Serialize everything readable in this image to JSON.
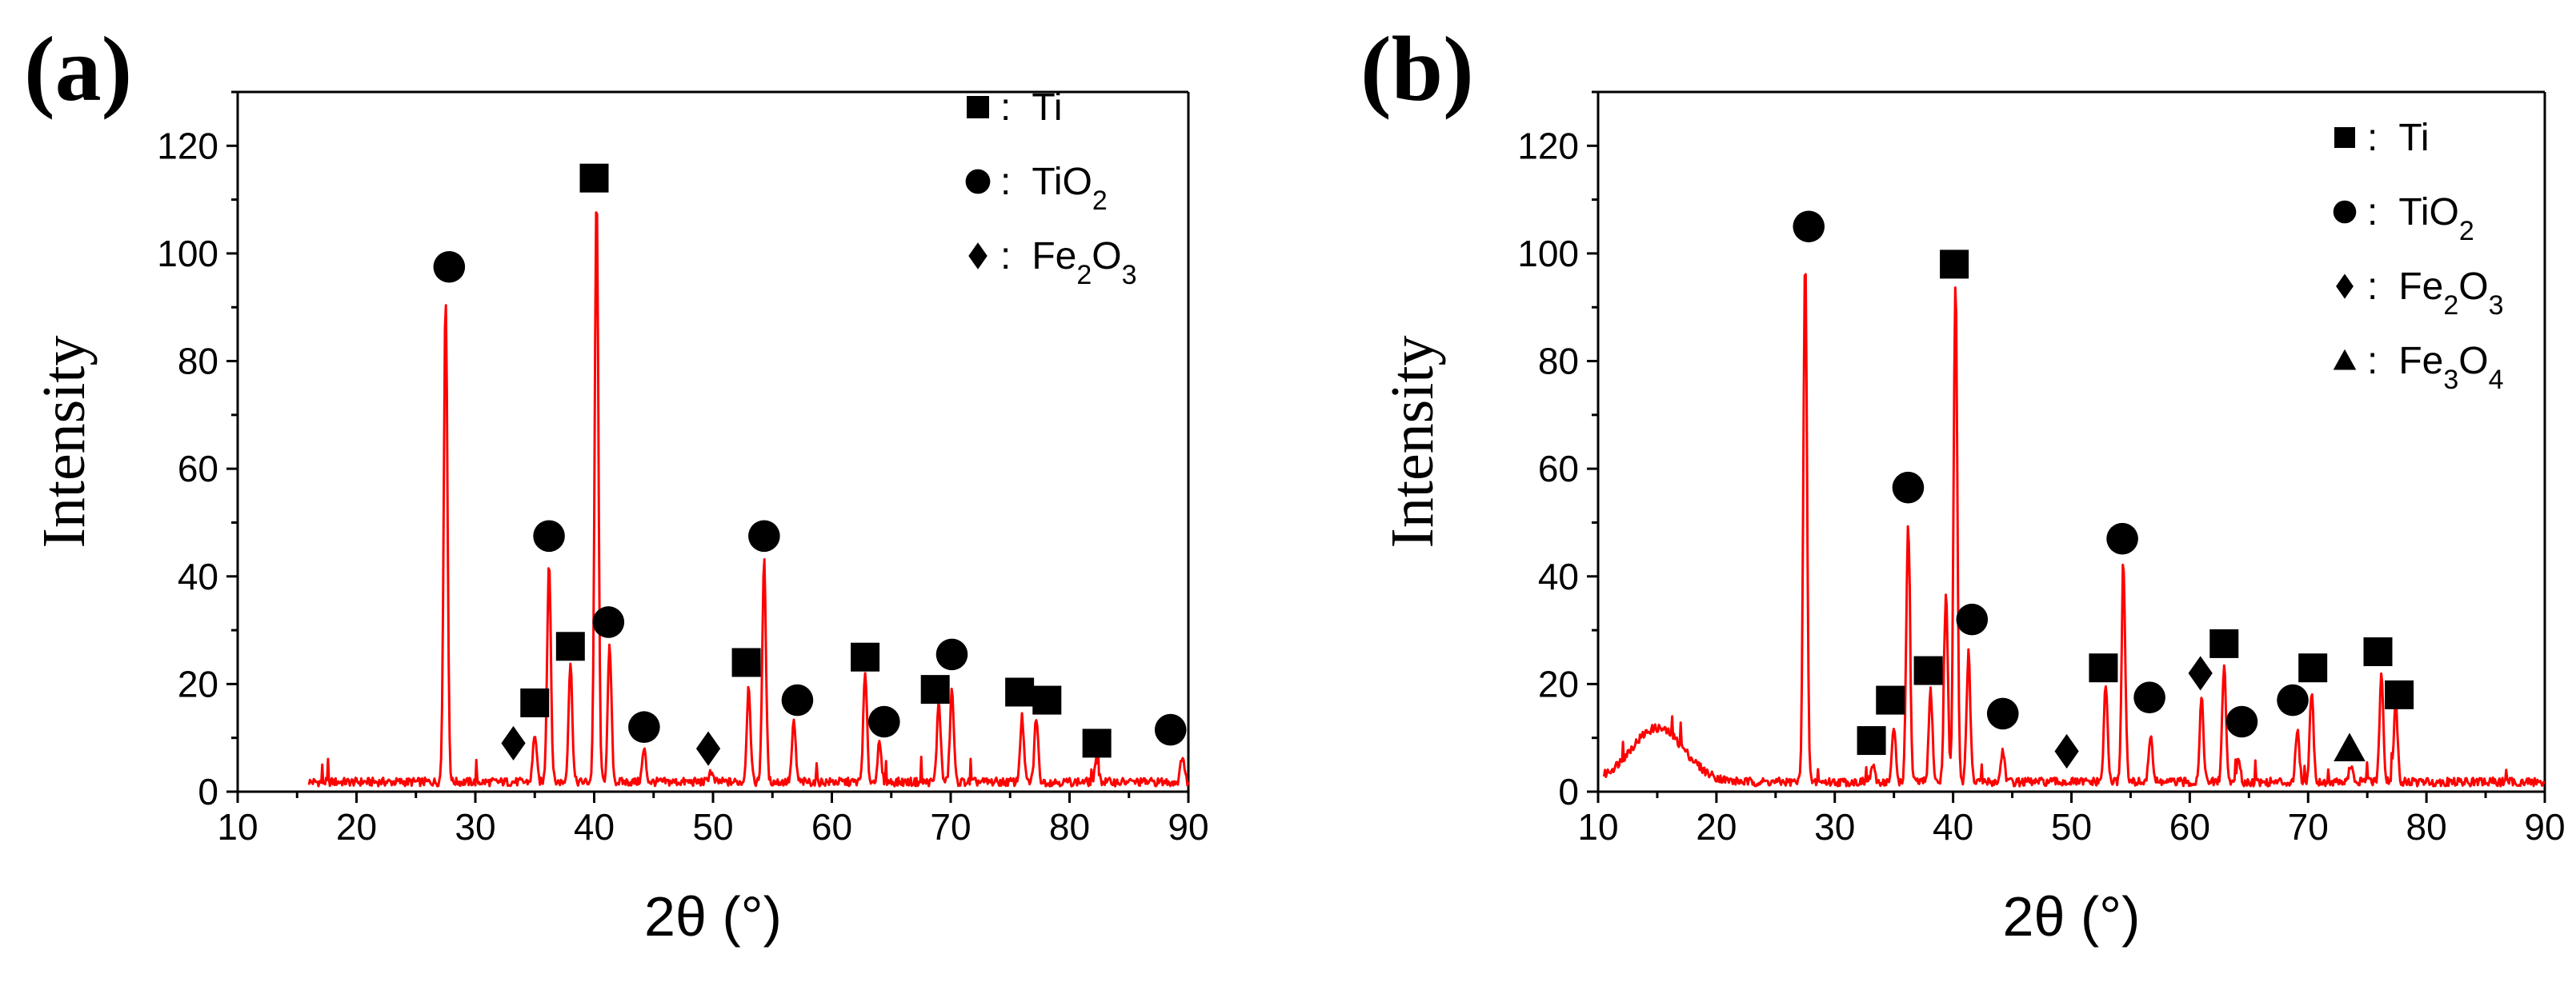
{
  "chart_data": [
    {
      "type": "line",
      "panel_label": "(a)",
      "xlabel": "2θ (°)",
      "ylabel": "Intensity",
      "xlim": [
        10,
        90
      ],
      "ylim": [
        0,
        130
      ],
      "xticks": [
        "10",
        "20",
        "30",
        "40",
        "50",
        "60",
        "70",
        "80",
        "90"
      ],
      "yticks": [
        "0",
        "20",
        "40",
        "60",
        "80",
        "100",
        "120"
      ],
      "legend_position": "top-right",
      "legend": [
        {
          "marker": "square",
          "name": "Ti",
          "sep": ":"
        },
        {
          "marker": "circle",
          "name": "TiO",
          "sub": "2",
          "sep": ":"
        },
        {
          "marker": "diamond",
          "name": "Fe",
          "sub": "2",
          "name2": "O",
          "sub2": "3",
          "sep": ":"
        }
      ],
      "series": [
        {
          "name": "XRD pattern",
          "color": "#ff0000",
          "x_start": 16,
          "baseline": 1,
          "peaks": [
            {
              "x": 27.5,
              "y": 90
            },
            {
              "x": 35.0,
              "y": 9
            },
            {
              "x": 36.2,
              "y": 41
            },
            {
              "x": 38.0,
              "y": 22
            },
            {
              "x": 40.2,
              "y": 109
            },
            {
              "x": 41.3,
              "y": 25
            },
            {
              "x": 44.2,
              "y": 6
            },
            {
              "x": 49.8,
              "y": 2
            },
            {
              "x": 53.0,
              "y": 18
            },
            {
              "x": 54.3,
              "y": 41
            },
            {
              "x": 56.8,
              "y": 11
            },
            {
              "x": 62.8,
              "y": 20
            },
            {
              "x": 64.0,
              "y": 7
            },
            {
              "x": 69.0,
              "y": 15
            },
            {
              "x": 70.1,
              "y": 17
            },
            {
              "x": 76.0,
              "y": 12
            },
            {
              "x": 77.2,
              "y": 12
            },
            {
              "x": 82.3,
              "y": 4
            },
            {
              "x": 89.5,
              "y": 5
            }
          ]
        }
      ],
      "markers": [
        {
          "shape": "circle",
          "x": 27.8,
          "y": 97.5
        },
        {
          "shape": "circle",
          "x": 36.2,
          "y": 47.5
        },
        {
          "shape": "square",
          "x": 35.0,
          "y": 16.5
        },
        {
          "shape": "square",
          "x": 38.0,
          "y": 27
        },
        {
          "shape": "square",
          "x": 40.0,
          "y": 114
        },
        {
          "shape": "circle",
          "x": 41.2,
          "y": 31.5
        },
        {
          "shape": "circle",
          "x": 44.2,
          "y": 12
        },
        {
          "shape": "diamond",
          "x": 33.2,
          "y": 9
        },
        {
          "shape": "diamond",
          "x": 49.6,
          "y": 8
        },
        {
          "shape": "square",
          "x": 52.8,
          "y": 24
        },
        {
          "shape": "circle",
          "x": 54.3,
          "y": 47.5
        },
        {
          "shape": "circle",
          "x": 57.1,
          "y": 17
        },
        {
          "shape": "square",
          "x": 62.8,
          "y": 25
        },
        {
          "shape": "circle",
          "x": 64.4,
          "y": 13
        },
        {
          "shape": "square",
          "x": 68.7,
          "y": 19
        },
        {
          "shape": "circle",
          "x": 70.1,
          "y": 25.5
        },
        {
          "shape": "square",
          "x": 75.8,
          "y": 18.5
        },
        {
          "shape": "square",
          "x": 78.1,
          "y": 17
        },
        {
          "shape": "square",
          "x": 82.3,
          "y": 9
        },
        {
          "shape": "circle",
          "x": 88.5,
          "y": 11.5
        }
      ]
    },
    {
      "type": "line",
      "panel_label": "(b)",
      "xlabel": "2θ (°)",
      "ylabel": "Intensity",
      "xlim": [
        10,
        90
      ],
      "ylim": [
        0,
        130
      ],
      "xticks": [
        "10",
        "20",
        "30",
        "40",
        "50",
        "60",
        "70",
        "80",
        "90"
      ],
      "yticks": [
        "0",
        "20",
        "40",
        "60",
        "80",
        "100",
        "120"
      ],
      "legend_position": "top-right",
      "legend": [
        {
          "marker": "square",
          "name": "Ti",
          "sep": ":"
        },
        {
          "marker": "circle",
          "name": "TiO",
          "sub": "2",
          "sep": ":"
        },
        {
          "marker": "diamond",
          "name": "Fe",
          "sub": "2",
          "name2": "O",
          "sub2": "3",
          "sep": ":"
        },
        {
          "marker": "triangle",
          "name": "Fe",
          "sub": "3",
          "name2": "O",
          "sub2": "4",
          "sep": ":"
        }
      ],
      "series": [
        {
          "name": "XRD pattern",
          "color": "#ff0000",
          "x_start": 10.5,
          "baseline": 1,
          "hump": {
            "center": 15,
            "height": 10,
            "width": 3.2
          },
          "peaks": [
            {
              "x": 27.5,
              "y": 97
            },
            {
              "x": 33.2,
              "y": 3
            },
            {
              "x": 35.0,
              "y": 10
            },
            {
              "x": 36.2,
              "y": 48
            },
            {
              "x": 38.1,
              "y": 17
            },
            {
              "x": 39.4,
              "y": 35
            },
            {
              "x": 40.2,
              "y": 93
            },
            {
              "x": 41.3,
              "y": 24
            },
            {
              "x": 44.2,
              "y": 6
            },
            {
              "x": 52.9,
              "y": 18
            },
            {
              "x": 54.4,
              "y": 39
            },
            {
              "x": 56.7,
              "y": 9
            },
            {
              "x": 61.0,
              "y": 16
            },
            {
              "x": 62.9,
              "y": 22
            },
            {
              "x": 64.1,
              "y": 4
            },
            {
              "x": 69.1,
              "y": 10
            },
            {
              "x": 70.3,
              "y": 17
            },
            {
              "x": 73.6,
              "y": 3
            },
            {
              "x": 76.2,
              "y": 20
            },
            {
              "x": 77.4,
              "y": 15
            }
          ]
        }
      ],
      "markers": [
        {
          "shape": "circle",
          "x": 27.8,
          "y": 105
        },
        {
          "shape": "square",
          "x": 33.1,
          "y": 9.5
        },
        {
          "shape": "square",
          "x": 34.7,
          "y": 17
        },
        {
          "shape": "circle",
          "x": 36.2,
          "y": 56.5
        },
        {
          "shape": "square",
          "x": 37.9,
          "y": 22.5
        },
        {
          "shape": "square",
          "x": 40.1,
          "y": 98
        },
        {
          "shape": "circle",
          "x": 41.6,
          "y": 32
        },
        {
          "shape": "circle",
          "x": 44.2,
          "y": 14.5
        },
        {
          "shape": "diamond",
          "x": 49.6,
          "y": 7.5
        },
        {
          "shape": "square",
          "x": 52.7,
          "y": 23
        },
        {
          "shape": "circle",
          "x": 54.3,
          "y": 47
        },
        {
          "shape": "circle",
          "x": 56.6,
          "y": 17.5
        },
        {
          "shape": "diamond",
          "x": 60.9,
          "y": 22
        },
        {
          "shape": "square",
          "x": 62.9,
          "y": 27.5
        },
        {
          "shape": "circle",
          "x": 64.4,
          "y": 13
        },
        {
          "shape": "circle",
          "x": 68.7,
          "y": 17
        },
        {
          "shape": "square",
          "x": 70.4,
          "y": 23
        },
        {
          "shape": "triangle",
          "x": 73.5,
          "y": 8
        },
        {
          "shape": "square",
          "x": 75.9,
          "y": 26
        },
        {
          "shape": "square",
          "x": 77.7,
          "y": 18
        }
      ]
    }
  ]
}
